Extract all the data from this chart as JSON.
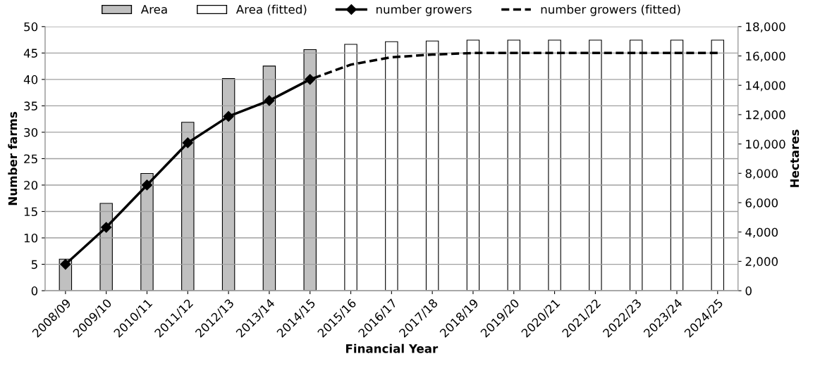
{
  "chart_data": {
    "type": "bar",
    "xlabel": "Financial Year",
    "ylabel": "Number farms",
    "y2label": "Hectares",
    "categories": [
      "2008/09",
      "2009/10",
      "2010/11",
      "2011/12",
      "2012/13",
      "2013/14",
      "2014/15",
      "2015/16",
      "2016/17",
      "2017/18",
      "2018/19",
      "2019/20",
      "2020/21",
      "2021/22",
      "2022/23",
      "2023/24",
      "2024/25"
    ],
    "series": [
      {
        "name": "Area",
        "axis": "y2",
        "color": "#c0c0c0",
        "values": [
          2150,
          5950,
          7990,
          11480,
          14460,
          15310,
          16430,
          null,
          null,
          null,
          null,
          null,
          null,
          null,
          null,
          null,
          null
        ]
      },
      {
        "name": "Area (fitted)",
        "axis": "y2",
        "color": "#ffffff",
        "values": [
          null,
          null,
          null,
          null,
          null,
          null,
          null,
          16790,
          16970,
          17020,
          17080,
          17080,
          17080,
          17080,
          17080,
          17080,
          17080
        ]
      },
      {
        "name": "number growers",
        "type": "line",
        "color": "#000000",
        "marker": "diamond",
        "line_style": "solid",
        "values": [
          5,
          12,
          20,
          28,
          33,
          36,
          40,
          null,
          null,
          null,
          null,
          null,
          null,
          null,
          null,
          null,
          null
        ]
      },
      {
        "name": "number growers (fitted)",
        "type": "line",
        "color": "#000000",
        "marker": "none",
        "line_style": "dashed",
        "values": [
          null,
          null,
          null,
          null,
          null,
          null,
          40,
          42.8,
          44.2,
          44.7,
          45,
          45,
          45,
          45,
          45,
          45,
          45
        ]
      }
    ],
    "ylim": [
      0,
      50
    ],
    "yticks": [
      0,
      5,
      10,
      15,
      20,
      25,
      30,
      35,
      40,
      45,
      50
    ],
    "y2lim": [
      0,
      18000
    ],
    "y2ticks": [
      0,
      {
        "value": 2000,
        "label": "2,000"
      },
      {
        "value": 4000,
        "label": "4,000"
      },
      {
        "value": 6000,
        "label": "6,000"
      },
      {
        "value": 8000,
        "label": "8,000"
      },
      {
        "value": 10000,
        "label": "10,000"
      },
      {
        "value": 12000,
        "label": "12,000"
      },
      {
        "value": 14000,
        "label": "14,000"
      },
      {
        "value": 16000,
        "label": "16,000"
      },
      {
        "value": 18000,
        "label": "18,000"
      }
    ],
    "grid": "y",
    "legend": "top"
  }
}
